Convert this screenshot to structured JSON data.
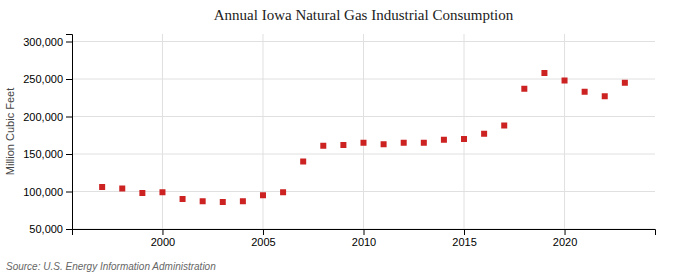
{
  "chart_data": {
    "type": "scatter",
    "title": "Annual Iowa Natural Gas Industrial Consumption",
    "y_label": "Million Cubic Feet",
    "source": "Source: U.S. Energy Information Administration",
    "color": "#cc2222",
    "marker": "square",
    "grid": true,
    "x": [
      1997,
      1998,
      1999,
      2000,
      2001,
      2002,
      2003,
      2004,
      2005,
      2006,
      2007,
      2008,
      2009,
      2010,
      2011,
      2012,
      2013,
      2014,
      2015,
      2016,
      2017,
      2018,
      2019,
      2020,
      2021,
      2022,
      2023
    ],
    "values": [
      106000,
      104000,
      98000,
      99000,
      90000,
      87000,
      86000,
      87000,
      95000,
      99000,
      140000,
      161000,
      162000,
      165000,
      163000,
      165000,
      165000,
      169000,
      170000,
      177000,
      188000,
      237000,
      258000,
      248000,
      233000,
      227000,
      245000
    ],
    "xlim": [
      1995.5,
      2024.5
    ],
    "ylim": [
      50000,
      310000
    ],
    "xticks": [
      2000,
      2005,
      2010,
      2015,
      2020
    ],
    "yticks": [
      {
        "value": 50000,
        "label": "50,000"
      },
      {
        "value": 100000,
        "label": "100,000"
      },
      {
        "value": 150000,
        "label": "150,000"
      },
      {
        "value": 200000,
        "label": "200,000"
      },
      {
        "value": 250000,
        "label": "250,000"
      },
      {
        "value": 300000,
        "label": "300,000"
      }
    ]
  }
}
